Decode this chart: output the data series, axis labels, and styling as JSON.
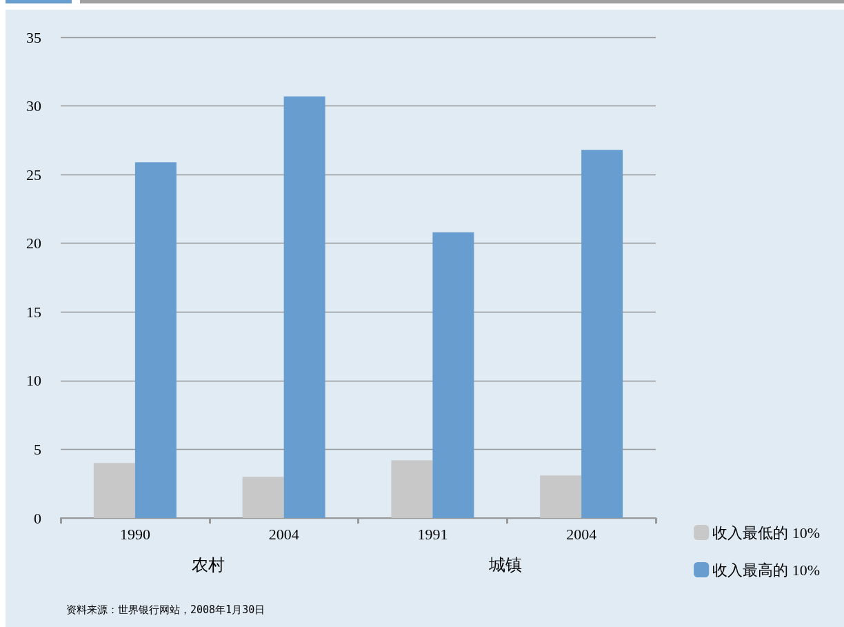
{
  "chart_data": {
    "type": "bar",
    "categories": [
      "1990",
      "2004",
      "1991",
      "2004"
    ],
    "series": [
      {
        "name": "收入最低的 10%",
        "color": "#c8c8c8",
        "values": [
          4.0,
          3.0,
          4.2,
          3.1
        ]
      },
      {
        "name": "收入最高的 10%",
        "color": "#679ecf",
        "values": [
          25.9,
          30.7,
          20.8,
          26.8
        ]
      }
    ],
    "ylim": [
      0,
      35
    ],
    "yticks": [
      0,
      5,
      10,
      15,
      20,
      25,
      30,
      35
    ],
    "grid": "y",
    "legend": "bottom right",
    "annotations": [
      "农村",
      "城镇",
      "资料来源：世界银行网站，2008年1月30日"
    ]
  }
}
